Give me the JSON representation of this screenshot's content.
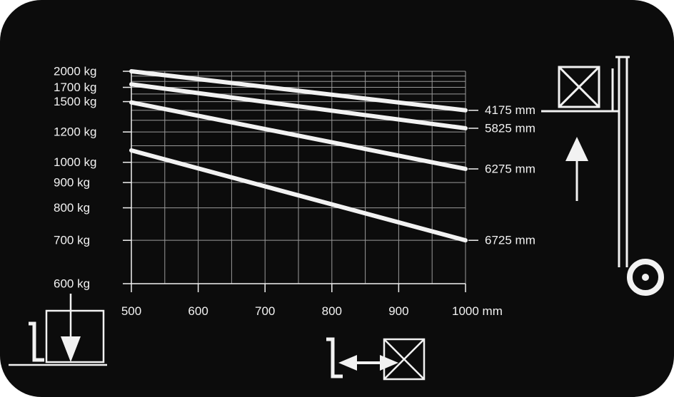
{
  "chart_data": {
    "type": "line",
    "title": "",
    "xlabel": "",
    "ylabel": "",
    "x_unit": "mm",
    "x_ticks": [
      500,
      600,
      700,
      800,
      900,
      1000
    ],
    "x_tick_labels": [
      "500",
      "600",
      "700",
      "800",
      "900",
      "1000 mm"
    ],
    "y_ticks": [
      600,
      700,
      800,
      900,
      1000,
      1200,
      1500,
      1700,
      2000
    ],
    "y_tick_labels": [
      "600 kg",
      "700 kg",
      "800 kg",
      "900 kg",
      "1000 kg",
      "1200 kg",
      "1500 kg",
      "1700 kg",
      "2000 kg"
    ],
    "xlim": [
      500,
      1000
    ],
    "ylim": [
      600,
      2000
    ],
    "y_scale": "reciprocal",
    "grid": true,
    "series": [
      {
        "name": "4175 mm",
        "x": [
          500,
          1000
        ],
        "values": [
          2000,
          1400
        ]
      },
      {
        "name": "5825 mm",
        "x": [
          500,
          1000
        ],
        "values": [
          1750,
          1230
        ]
      },
      {
        "name": "6275 mm",
        "x": [
          500,
          1000
        ],
        "values": [
          1490,
          965
        ]
      },
      {
        "name": "6725 mm",
        "x": [
          500,
          1000
        ],
        "values": [
          1070,
          700
        ]
      }
    ]
  },
  "colors": {
    "background": "#0c0c0c",
    "foreground": "#f2f2f2",
    "page": "#ffffff"
  },
  "icons": [
    "forklift-lift-height-icon",
    "forklift-lowering-icon",
    "load-center-distance-icon"
  ]
}
